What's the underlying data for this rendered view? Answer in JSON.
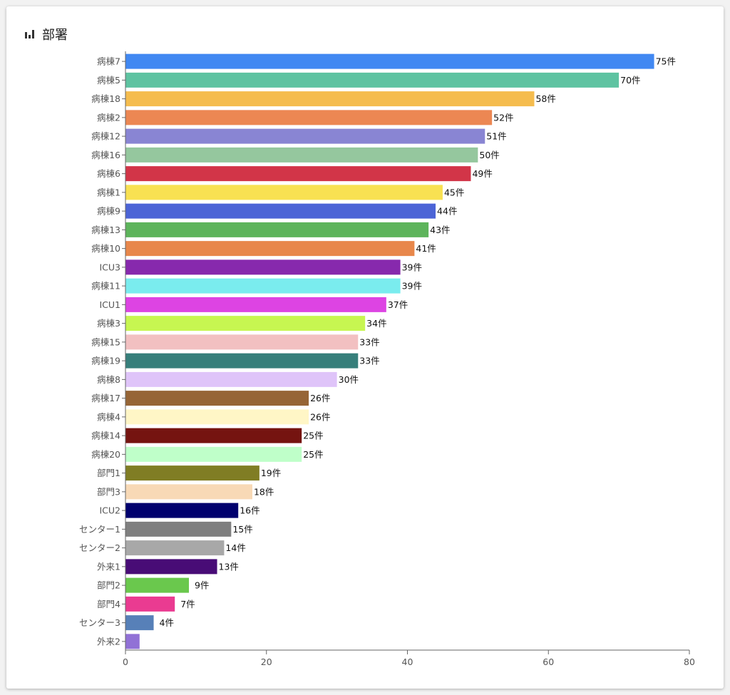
{
  "card": {
    "title": "部署",
    "icon": "bar-chart-icon"
  },
  "chart_data": {
    "type": "bar",
    "orientation": "horizontal",
    "title": "部署",
    "xlabel": "",
    "ylabel": "",
    "xlim": [
      0,
      80
    ],
    "xticks": [
      0,
      20,
      40,
      60,
      80
    ],
    "grid": false,
    "legend": "none",
    "value_suffix": "件",
    "categories": [
      "病棟7",
      "病棟5",
      "病棟18",
      "病棟2",
      "病棟12",
      "病棟16",
      "病棟6",
      "病棟1",
      "病棟9",
      "病棟13",
      "病棟10",
      "ICU3",
      "病棟11",
      "ICU1",
      "病棟3",
      "病棟15",
      "病棟19",
      "病棟8",
      "病棟17",
      "病棟4",
      "病棟14",
      "病棟20",
      "部門1",
      "部門3",
      "ICU2",
      "センター1",
      "センター2",
      "外来1",
      "部門2",
      "部門4",
      "センター3",
      "外来2"
    ],
    "values": [
      75,
      70,
      58,
      52,
      51,
      50,
      49,
      45,
      44,
      43,
      41,
      39,
      39,
      37,
      34,
      33,
      33,
      30,
      26,
      26,
      25,
      25,
      19,
      18,
      16,
      15,
      14,
      13,
      9,
      7,
      4,
      2
    ],
    "value_labels": [
      "75件",
      "70件",
      "58件",
      "52件",
      "51件",
      "50件",
      "49件",
      "45件",
      "44件",
      "43件",
      "41件",
      "39件",
      "39件",
      "37件",
      "34件",
      "33件",
      "33件",
      "30件",
      "26件",
      "26件",
      "25件",
      "25件",
      "19件",
      "18件",
      "16件",
      "15件",
      "14件",
      "13件",
      "9件",
      "7件",
      "4件",
      ""
    ],
    "colors": [
      "#4188f2",
      "#5ec3a1",
      "#f5bc4e",
      "#ec8753",
      "#8985d3",
      "#95c79e",
      "#d23548",
      "#f8e152",
      "#4c64d6",
      "#5db45b",
      "#e8874b",
      "#8729ad",
      "#7aecee",
      "#dd44e3",
      "#c7f651",
      "#f2c0c1",
      "#377f7b",
      "#dfc4f9",
      "#966536",
      "#fff6c6",
      "#751410",
      "#bfffc9",
      "#807d24",
      "#f8d9b6",
      "#01016e",
      "#7f7f7f",
      "#a8a8a8",
      "#480c76",
      "#6ac84d",
      "#ea3b91",
      "#5780b8",
      "#9171d6"
    ]
  }
}
